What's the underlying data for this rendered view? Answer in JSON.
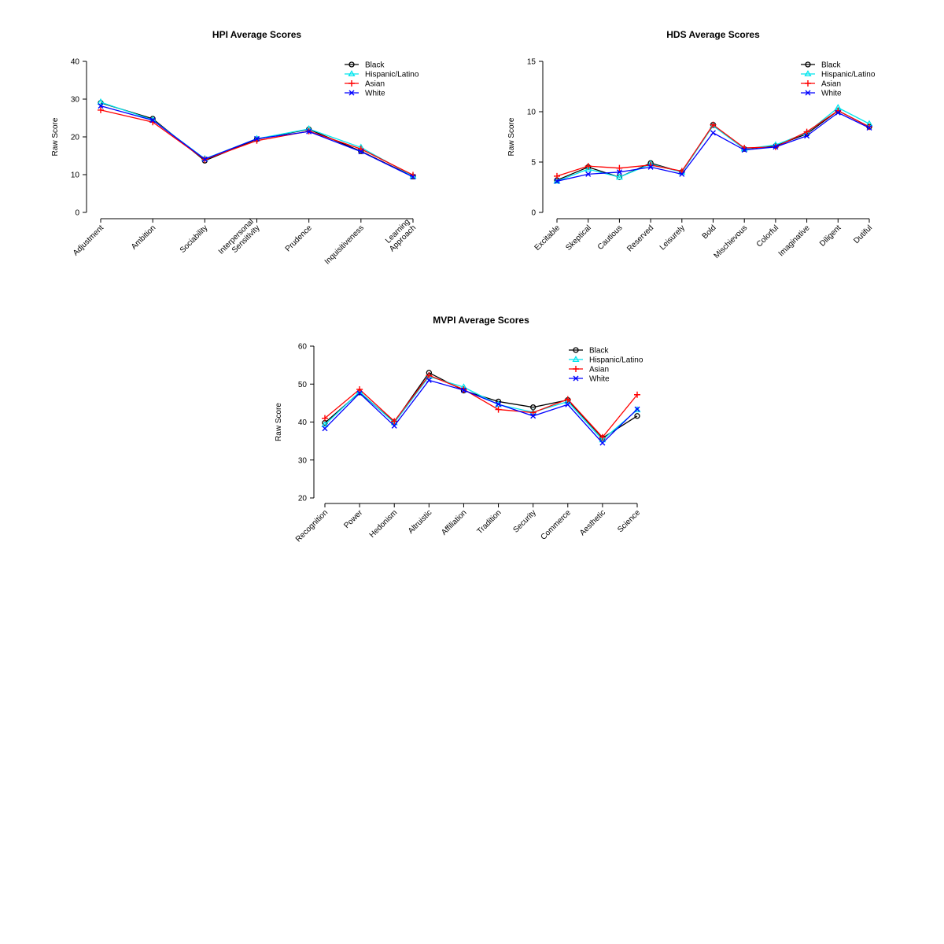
{
  "series_styles": [
    {
      "color": "#000000",
      "marker": "circle"
    },
    {
      "color": "#00e5ee",
      "marker": "triangle"
    },
    {
      "color": "#ff0000",
      "marker": "plus"
    },
    {
      "color": "#0000ff",
      "marker": "x"
    }
  ],
  "chart_data": [
    {
      "type": "line",
      "title": "HPI Average Scores",
      "ylabel": "Raw Score",
      "ylim": [
        0,
        40
      ],
      "yticks": [
        0,
        10,
        20,
        30,
        40
      ],
      "legend_position": "top-right",
      "categories": [
        "Adjustment",
        "Ambition",
        "Sociability",
        "Interpersonal\nSensitivity",
        "Prudence",
        "Inquisitiveness",
        "Learning\nApproach"
      ],
      "series": [
        {
          "name": "Black",
          "values": [
            29.0,
            24.8,
            13.7,
            19.4,
            22.0,
            16.2,
            9.5
          ]
        },
        {
          "name": "Hispanic/Latino",
          "values": [
            29.2,
            24.5,
            14.2,
            19.5,
            22.1,
            17.2,
            9.6
          ]
        },
        {
          "name": "Asian",
          "values": [
            27.1,
            23.9,
            14.0,
            19.0,
            21.5,
            16.8,
            9.9
          ]
        },
        {
          "name": "White",
          "values": [
            28.2,
            24.4,
            14.1,
            19.5,
            21.4,
            16.1,
            9.4
          ]
        }
      ]
    },
    {
      "type": "line",
      "title": "HDS Average Scores",
      "ylabel": "Raw Score",
      "ylim": [
        0,
        15
      ],
      "yticks": [
        0,
        5,
        10,
        15
      ],
      "legend_position": "top-right",
      "categories": [
        "Excitable",
        "Skeptical",
        "Cautious",
        "Reserved",
        "Leisurely",
        "Bold",
        "Mischievous",
        "Colorful",
        "Imaginative",
        "Diligent",
        "Dutiful"
      ],
      "series": [
        {
          "name": "Black",
          "values": [
            3.2,
            4.5,
            3.5,
            4.9,
            4.0,
            8.7,
            6.3,
            6.6,
            7.8,
            10.1,
            8.5
          ]
        },
        {
          "name": "Hispanic/Latino",
          "values": [
            3.1,
            4.3,
            3.5,
            4.8,
            4.0,
            8.6,
            6.3,
            6.7,
            7.9,
            10.4,
            8.8
          ]
        },
        {
          "name": "Asian",
          "values": [
            3.6,
            4.6,
            4.4,
            4.7,
            4.1,
            8.7,
            6.4,
            6.5,
            8.0,
            10.1,
            8.5
          ]
        },
        {
          "name": "White",
          "values": [
            3.1,
            3.8,
            4.0,
            4.5,
            3.8,
            7.9,
            6.2,
            6.5,
            7.6,
            9.9,
            8.4
          ]
        }
      ]
    },
    {
      "type": "line",
      "title": "MVPI Average Scores",
      "ylabel": "Raw Score",
      "ylim": [
        20,
        60
      ],
      "yticks": [
        20,
        30,
        40,
        50,
        60
      ],
      "legend_position": "top-right",
      "categories": [
        "Recognition",
        "Power",
        "Hedonism",
        "Altruistic",
        "Affiliation",
        "Tradition",
        "Security",
        "Commerce",
        "Aesthetic",
        "Science"
      ],
      "series": [
        {
          "name": "Black",
          "values": [
            39.8,
            47.8,
            40.0,
            53.0,
            48.3,
            45.4,
            43.9,
            45.8,
            35.8,
            41.6
          ]
        },
        {
          "name": "Hispanic/Latino",
          "values": [
            39.3,
            48.0,
            39.8,
            52.0,
            49.2,
            44.6,
            42.6,
            45.4,
            35.3,
            43.2
          ]
        },
        {
          "name": "Asian",
          "values": [
            41.0,
            48.6,
            40.2,
            52.3,
            48.6,
            43.3,
            42.5,
            46.0,
            36.0,
            47.2
          ]
        },
        {
          "name": "White",
          "values": [
            38.3,
            47.6,
            39.0,
            51.0,
            48.4,
            44.7,
            41.6,
            44.6,
            34.5,
            43.4
          ]
        }
      ]
    }
  ]
}
